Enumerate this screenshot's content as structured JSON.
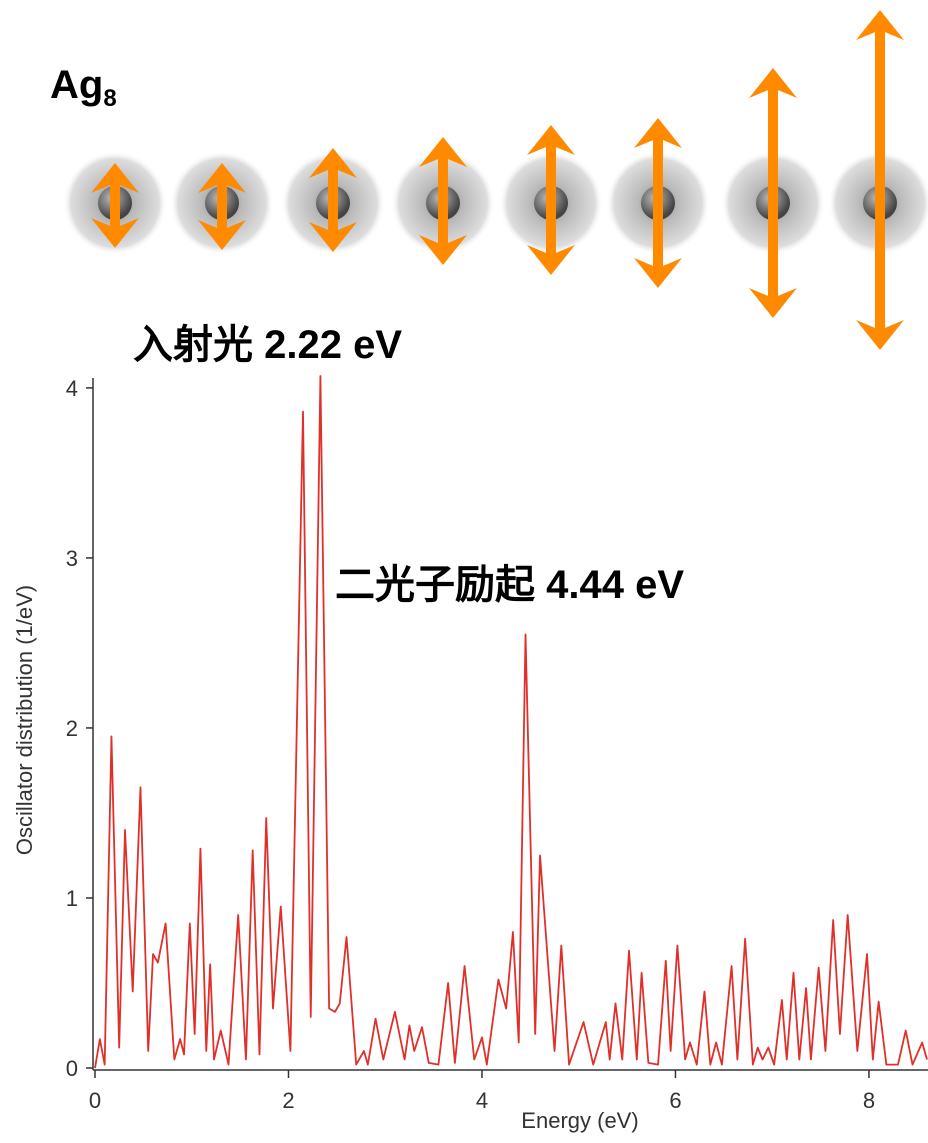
{
  "chart_data": {
    "type": "line",
    "title": {
      "text": "Ag",
      "subscript": "8"
    },
    "annotations": [
      "入射光 2.22 eV",
      "二光子励起 4.44 eV"
    ],
    "x_label": "Energy (eV)",
    "y_label": "Oscillator distribution (1/eV)",
    "xlim": [
      0,
      8.6
    ],
    "ylim": [
      0,
      4.07
    ],
    "xticks": [
      0,
      2,
      4,
      6,
      8
    ],
    "yticks": [
      0,
      1,
      2,
      3,
      4
    ],
    "series": [
      {
        "color": "#e0302a",
        "x": [
          0,
          0.05,
          0.1,
          0.17,
          0.25,
          0.31,
          0.39,
          0.47,
          0.55,
          0.6,
          0.65,
          0.73,
          0.82,
          0.88,
          0.92,
          0.98,
          1.03,
          1.09,
          1.15,
          1.19,
          1.23,
          1.3,
          1.38,
          1.48,
          1.56,
          1.63,
          1.7,
          1.77,
          1.84,
          1.92,
          2.02,
          2.15,
          2.23,
          2.33,
          2.42,
          2.48,
          2.53,
          2.6,
          2.7,
          2.78,
          2.82,
          2.9,
          2.98,
          3.1,
          3.2,
          3.25,
          3.3,
          3.38,
          3.45,
          3.55,
          3.65,
          3.72,
          3.82,
          3.92,
          4.0,
          4.05,
          4.17,
          4.25,
          4.32,
          4.38,
          4.45,
          4.55,
          4.6,
          4.75,
          4.82,
          4.9,
          5.05,
          5.15,
          5.28,
          5.32,
          5.38,
          5.45,
          5.52,
          5.6,
          5.65,
          5.72,
          5.82,
          5.9,
          5.95,
          6.02,
          6.1,
          6.15,
          6.22,
          6.3,
          6.36,
          6.42,
          6.48,
          6.58,
          6.64,
          6.72,
          6.8,
          6.85,
          6.9,
          6.96,
          7.02,
          7.1,
          7.15,
          7.22,
          7.28,
          7.35,
          7.4,
          7.48,
          7.55,
          7.63,
          7.7,
          7.78,
          7.88,
          7.98,
          8.04,
          8.1,
          8.18,
          8.3,
          8.38,
          8.45,
          8.55,
          8.6
        ],
        "values": [
          0,
          0.17,
          0.02,
          1.95,
          0.12,
          1.4,
          0.45,
          1.65,
          0.1,
          0.67,
          0.62,
          0.85,
          0.05,
          0.17,
          0.08,
          0.85,
          0.2,
          1.29,
          0.1,
          0.61,
          0.05,
          0.22,
          0.02,
          0.9,
          0.05,
          1.28,
          0.08,
          1.47,
          0.35,
          0.95,
          0.1,
          3.86,
          0.3,
          4.07,
          0.35,
          0.33,
          0.38,
          0.77,
          0.02,
          0.1,
          0.02,
          0.29,
          0.05,
          0.33,
          0.05,
          0.25,
          0.1,
          0.24,
          0.03,
          0.02,
          0.5,
          0.03,
          0.6,
          0.05,
          0.18,
          0.02,
          0.52,
          0.35,
          0.8,
          0.15,
          2.55,
          0.2,
          1.25,
          0.1,
          0.72,
          0.02,
          0.27,
          0.02,
          0.27,
          0.05,
          0.38,
          0.05,
          0.69,
          0.05,
          0.56,
          0.03,
          0.02,
          0.63,
          0.1,
          0.72,
          0.05,
          0.15,
          0.02,
          0.45,
          0.02,
          0.15,
          0.02,
          0.6,
          0.05,
          0.76,
          0.02,
          0.12,
          0.05,
          0.12,
          0.02,
          0.4,
          0.05,
          0.56,
          0.05,
          0.47,
          0.05,
          0.59,
          0.1,
          0.87,
          0.2,
          0.9,
          0.1,
          0.67,
          0.05,
          0.39,
          0.02,
          0.02,
          0.22,
          0.02,
          0.15,
          0.05
        ]
      }
    ]
  }
}
